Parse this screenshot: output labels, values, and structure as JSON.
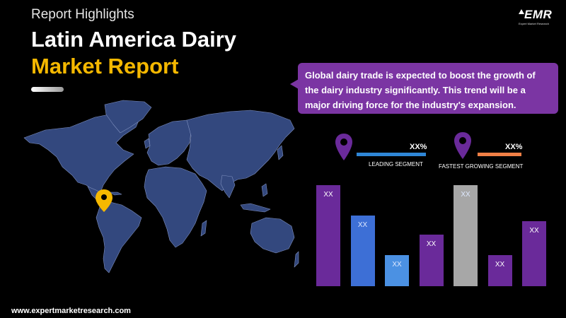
{
  "header": {
    "eyebrow": "Report Highlights",
    "title_line1": "Latin America Dairy",
    "title_line2": "Market Report"
  },
  "logo": {
    "text": "EMR",
    "subtext": "Expert Market Research",
    "icon": "emr-arrow-logo"
  },
  "callout": {
    "text": "Global dairy trade is expected to boost the growth of the dairy industry significantly. This trend will be a major driving force for the industry's expansion."
  },
  "segments": [
    {
      "value": "XX%",
      "label": "LEADING SEGMENT",
      "color": "#2f86d6",
      "icon": "location-pin-icon"
    },
    {
      "value": "XX%",
      "label": "FASTEST GROWING SEGMENT",
      "color": "#f07f45",
      "icon": "location-pin-icon"
    }
  ],
  "map": {
    "marker_icon": "location-pin-icon",
    "marker_color": "#f5b800",
    "land_color": "#33487e"
  },
  "chart_data": {
    "type": "bar",
    "bars": [
      {
        "label": "XX",
        "value": 1.0,
        "color": "#6a2a9a"
      },
      {
        "label": "XX",
        "value": 0.7,
        "color": "#3d6fd6"
      },
      {
        "label": "XX",
        "value": 0.31,
        "color": "#4b91e3"
      },
      {
        "label": "XX",
        "value": 0.51,
        "color": "#6a2a9a"
      },
      {
        "label": "XX",
        "value": 1.0,
        "color": "#a7a7a7"
      },
      {
        "label": "XX",
        "value": 0.31,
        "color": "#6a2a9a"
      },
      {
        "label": "XX",
        "value": 0.64,
        "color": "#6a2a9a"
      }
    ]
  },
  "footer": {
    "website": "www.expertmarketresearch.com"
  }
}
